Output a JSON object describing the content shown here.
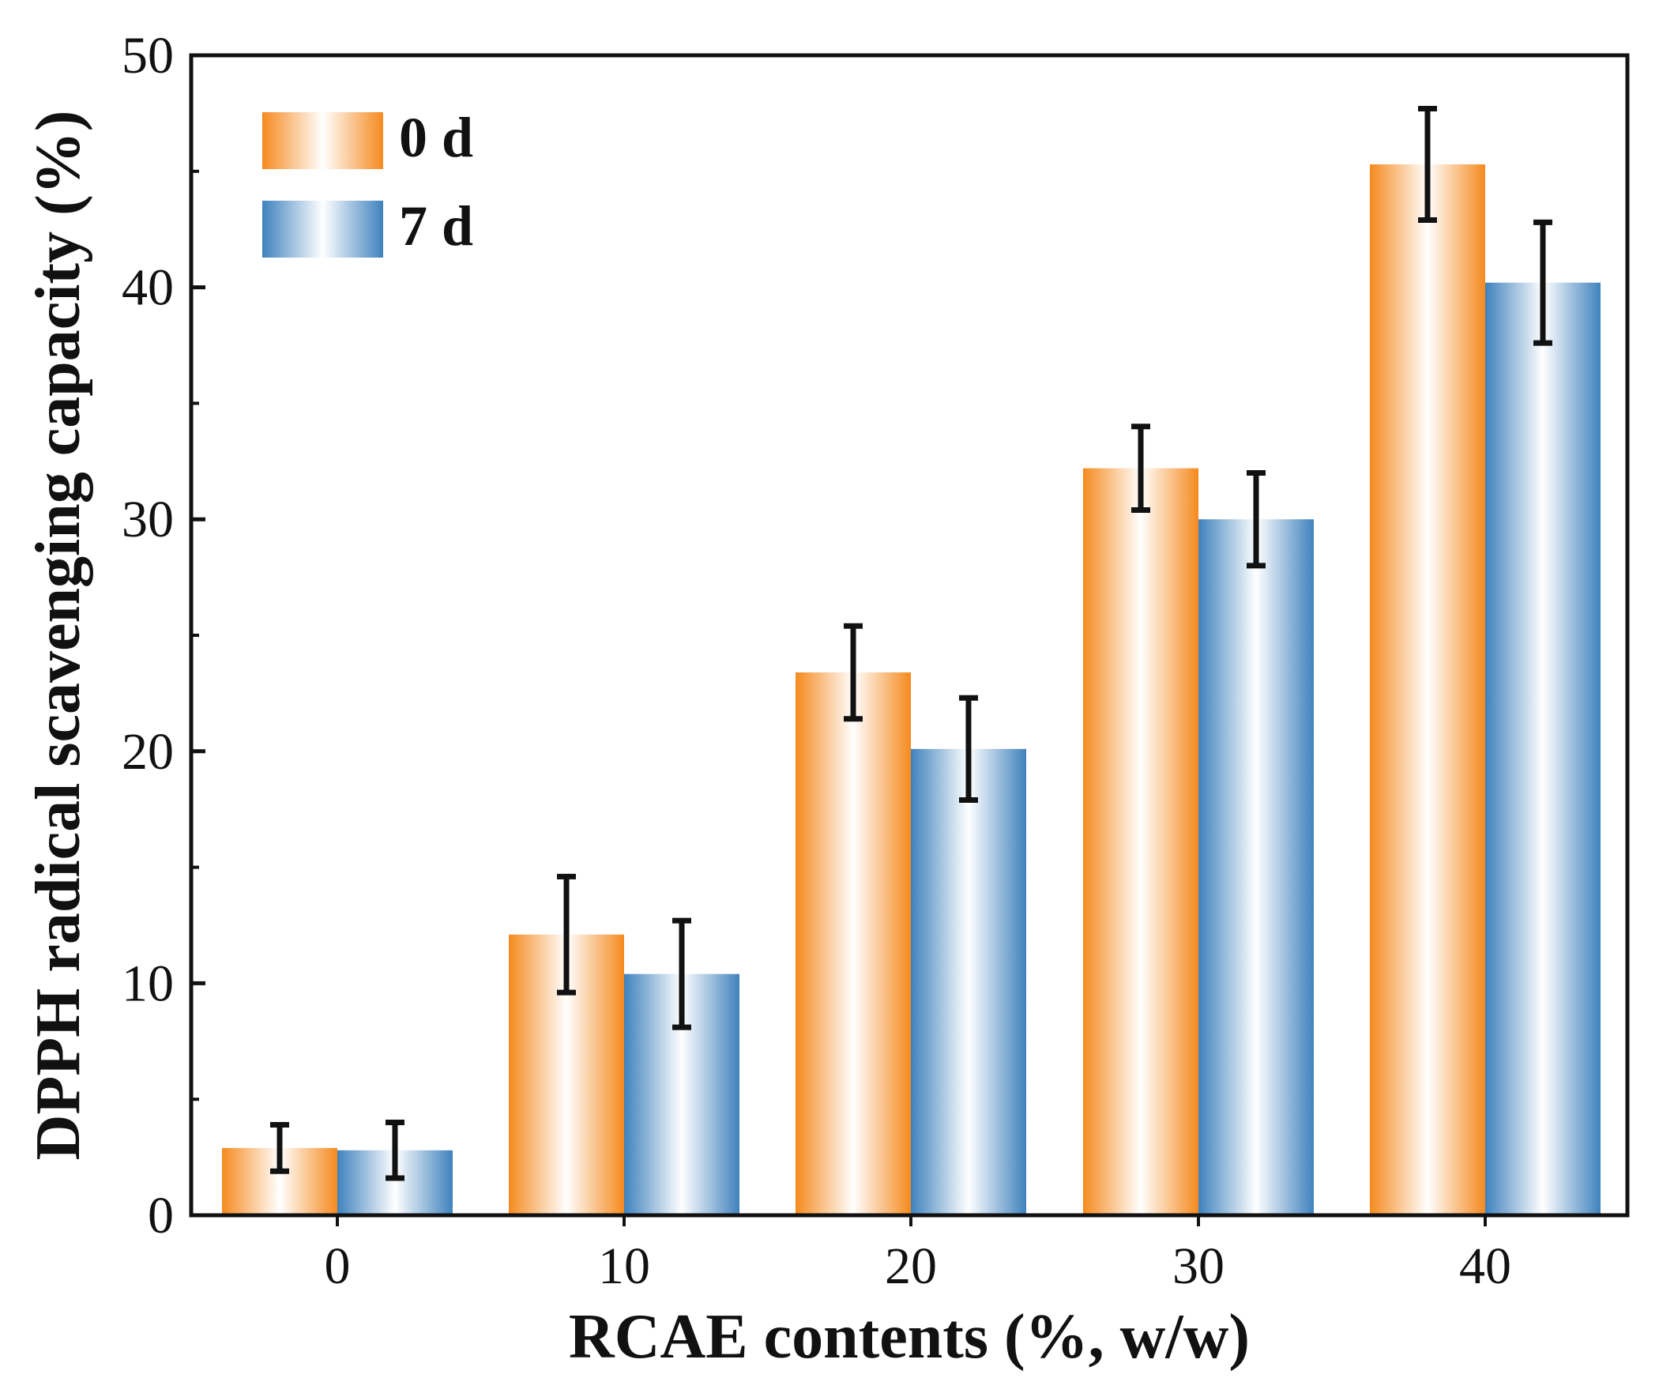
{
  "chart_data": {
    "type": "bar",
    "categories": [
      "0",
      "10",
      "20",
      "30",
      "40"
    ],
    "series": [
      {
        "name": "0 d",
        "values": [
          2.9,
          12.1,
          23.4,
          32.2,
          45.3
        ],
        "errors": [
          1.0,
          2.5,
          2.0,
          1.8,
          2.4
        ],
        "color": "#f58a1f",
        "color_light": "#ffffff"
      },
      {
        "name": "7 d",
        "values": [
          2.8,
          10.4,
          20.1,
          30.0,
          40.2
        ],
        "errors": [
          1.2,
          2.3,
          2.2,
          2.0,
          2.6
        ],
        "color": "#3f82bd",
        "color_light": "#ffffff"
      }
    ],
    "xlabel": "RCAE contents (%, w/w)",
    "ylabel": "DPPH radical scavenging capacity (%)",
    "ylim": [
      0,
      50
    ],
    "yticks": [
      "0",
      "10",
      "20",
      "30",
      "40",
      "50"
    ],
    "legend_position": "top-left",
    "grid": false
  }
}
